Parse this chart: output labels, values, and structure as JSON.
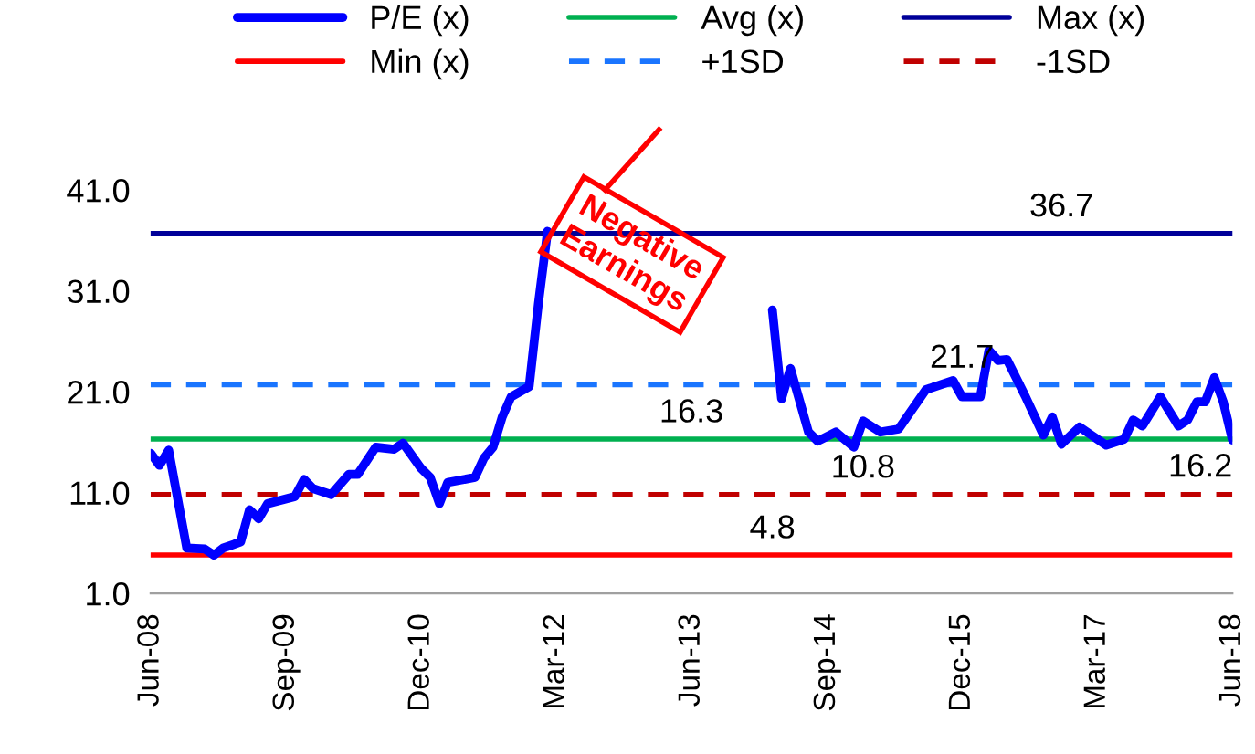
{
  "chart_data": {
    "type": "line",
    "xlim": [
      "2008-06",
      "2018-06"
    ],
    "xticks": [
      {
        "value": "2008-06",
        "label": "Jun-08"
      },
      {
        "value": "2009-09",
        "label": "Sep-09"
      },
      {
        "value": "2010-12",
        "label": "Dec-10"
      },
      {
        "value": "2012-03",
        "label": "Mar-12"
      },
      {
        "value": "2013-06",
        "label": "Jun-13"
      },
      {
        "value": "2014-09",
        "label": "Sep-14"
      },
      {
        "value": "2015-12",
        "label": "Dec-15"
      },
      {
        "value": "2017-03",
        "label": "Mar-17"
      },
      {
        "value": "2018-06",
        "label": "Jun-18"
      }
    ],
    "ylim": [
      1,
      41
    ],
    "yticks": [
      {
        "value": 1,
        "label": "1.0"
      },
      {
        "value": 11,
        "label": "11.0"
      },
      {
        "value": 21,
        "label": "21.0"
      },
      {
        "value": 31,
        "label": "31.0"
      },
      {
        "value": 41,
        "label": "41.0"
      }
    ],
    "grid": false,
    "legend": "top",
    "marker": "none",
    "annotations": [
      "Negative Earnings"
    ],
    "series": [
      {
        "name": "P/E (x)",
        "color": "#0000ff",
        "line_style": "solid",
        "x": [
          "2008-06",
          "2008-07",
          "2008-08",
          "2008-10",
          "2008-12",
          "2009-01",
          "2009-02",
          "2009-04",
          "2009-05",
          "2009-06",
          "2009-07",
          "2009-10",
          "2009-11",
          "2009-12",
          "2010-02",
          "2010-04",
          "2010-05",
          "2010-07",
          "2010-09",
          "2010-10",
          "2010-12",
          "2011-01",
          "2011-02",
          "2011-03",
          "2011-06",
          "2011-07",
          "2011-08",
          "2011-09",
          "2011-10",
          "2011-12",
          "2012-01",
          "2012-02",
          "2012-03",
          "2014-03",
          "2014-04",
          "2014-05",
          "2014-07",
          "2014-08",
          "2014-10",
          "2014-12",
          "2015-01",
          "2015-03",
          "2015-05",
          "2015-08",
          "2015-11",
          "2015-12",
          "2016-02",
          "2016-03",
          "2016-04",
          "2016-05",
          "2016-07",
          "2016-09",
          "2016-10",
          "2016-11",
          "2017-01",
          "2017-04",
          "2017-06",
          "2017-07",
          "2017-08",
          "2017-10",
          "2017-12",
          "2018-01",
          "2018-02",
          "2018-03",
          "2018-04",
          "2018-05",
          "2018-06"
        ],
        "values": [
          14.9,
          13.7,
          15.2,
          5.5,
          5.4,
          4.8,
          5.5,
          6.1,
          9.3,
          8.4,
          9.9,
          10.6,
          12.3,
          11.4,
          10.8,
          12.8,
          12.8,
          15.5,
          15.3,
          15.9,
          13.4,
          12.5,
          9.9,
          12.0,
          12.5,
          14.4,
          15.5,
          18.5,
          20.5,
          21.5,
          29.7,
          36.9,
          null,
          29.1,
          20.3,
          23.3,
          17.0,
          16.1,
          17.0,
          15.5,
          18.1,
          17.0,
          17.3,
          21.2,
          22.1,
          20.5,
          20.5,
          25.1,
          24.1,
          24.2,
          20.6,
          16.7,
          18.5,
          15.8,
          17.5,
          15.7,
          16.3,
          18.2,
          17.6,
          20.5,
          17.6,
          18.2,
          20.0,
          20.0,
          22.4,
          20.0,
          16.2
        ],
        "value_labels": [
          null,
          null,
          null,
          null,
          null,
          null,
          null,
          null,
          null,
          null,
          null,
          null,
          null,
          null,
          null,
          null,
          null,
          null,
          null,
          null,
          null,
          null,
          null,
          null,
          null,
          null,
          null,
          null,
          null,
          null,
          null,
          null,
          null,
          null,
          null,
          null,
          null,
          null,
          null,
          null,
          null,
          null,
          null,
          null,
          null,
          null,
          null,
          null,
          null,
          null,
          null,
          null,
          null,
          null,
          null,
          null,
          null,
          null,
          null,
          null,
          null,
          null,
          null,
          null,
          null,
          null,
          "16.2"
        ]
      },
      {
        "name": "Avg (x)",
        "color": "#00b050",
        "line_style": "solid",
        "x": [
          "2008-06",
          "2013-06",
          "2018-06"
        ],
        "values": [
          16.3,
          16.3,
          16.3
        ],
        "value_labels": [
          null,
          "16.3",
          null
        ]
      },
      {
        "name": "Max (x)",
        "color": "#000099",
        "line_style": "solid",
        "x": [
          "2008-06",
          "2016-11",
          "2018-06"
        ],
        "values": [
          36.7,
          36.7,
          36.7
        ],
        "value_labels": [
          null,
          "36.7",
          null
        ]
      },
      {
        "name": "Min (x)",
        "color": "#ff0000",
        "line_style": "solid",
        "x": [
          "2008-06",
          "2014-03",
          "2018-06"
        ],
        "values": [
          4.8,
          4.8,
          4.8
        ],
        "value_labels": [
          null,
          "4.8",
          null
        ]
      },
      {
        "name": "+1SD",
        "color": "#1a75ff",
        "line_style": "dashed",
        "x": [
          "2008-06",
          "2015-12",
          "2018-06"
        ],
        "values": [
          21.7,
          21.7,
          21.7
        ],
        "value_labels": [
          null,
          "21.7",
          null
        ]
      },
      {
        "name": "-1SD",
        "color": "#c00000",
        "line_style": "dashed",
        "x": [
          "2008-06",
          "2015-01",
          "2018-06"
        ],
        "values": [
          10.8,
          10.8,
          10.8
        ],
        "value_labels": [
          null,
          "10.8",
          null
        ]
      }
    ]
  }
}
